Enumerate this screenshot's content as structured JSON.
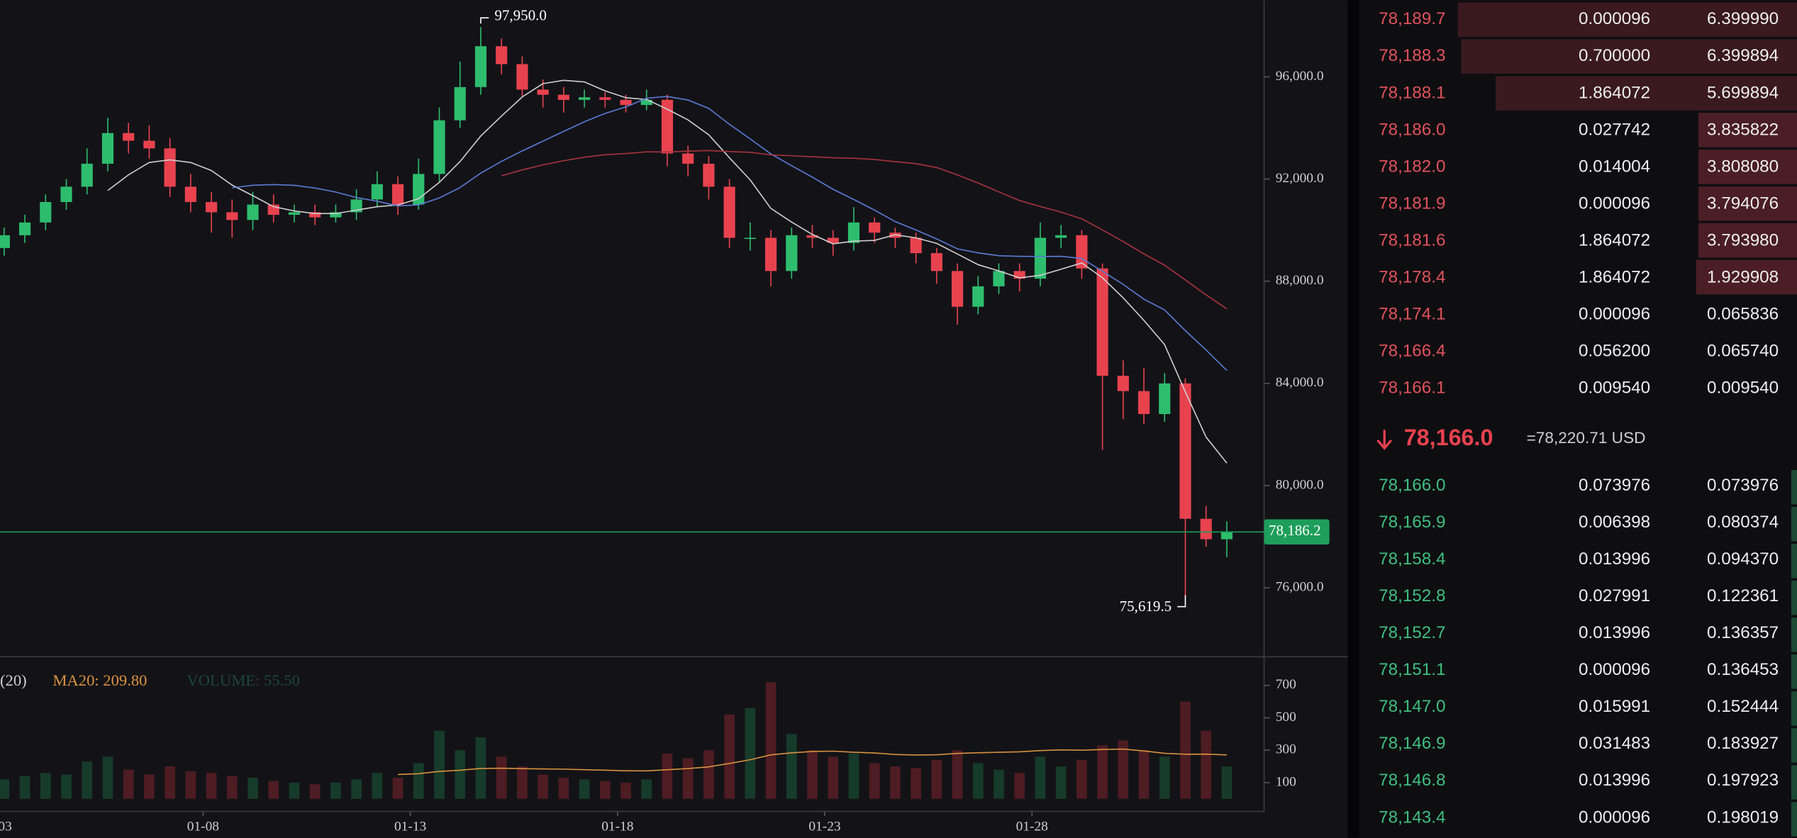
{
  "chart_data": {
    "type": "candlestick",
    "x": [
      3.2,
      3.7,
      4.2,
      4.7,
      5.2,
      5.7,
      6.2,
      6.7,
      7.2,
      7.7,
      8.2,
      8.7,
      9.2,
      9.7,
      10.2,
      10.7,
      11.2,
      11.7,
      12.2,
      12.7,
      13.2,
      13.7,
      14.2,
      14.7,
      15.2,
      15.7,
      16.2,
      16.7,
      17.2,
      17.7,
      18.2,
      18.7,
      19.2,
      19.7,
      20.2,
      20.7,
      21.2,
      21.7,
      22.2,
      22.7,
      23.2,
      23.7,
      24.2,
      24.7,
      25.2,
      25.7,
      26.2,
      26.7,
      27.2,
      27.7,
      28.2,
      28.7,
      29.2,
      29.7,
      30.2,
      30.7,
      31.2,
      31.7,
      32.2,
      32.7
    ],
    "open": [
      89300,
      89800,
      90300,
      91100,
      91700,
      92600,
      93800,
      93500,
      93200,
      91700,
      91100,
      90700,
      90400,
      91000,
      90600,
      90700,
      90500,
      90700,
      91200,
      91800,
      91000,
      92200,
      94300,
      95600,
      97200,
      96500,
      95500,
      95300,
      95100,
      95200,
      95100,
      94900,
      95100,
      93000,
      92600,
      91700,
      89700,
      89700,
      88400,
      89800,
      89700,
      89500,
      90300,
      89900,
      89700,
      89100,
      88400,
      87000,
      87800,
      88400,
      88100,
      89700,
      89800,
      88500,
      84300,
      83700,
      82800,
      84000,
      78700,
      77900
    ],
    "high": [
      90100,
      90600,
      91400,
      92000,
      93200,
      94400,
      94200,
      94100,
      93600,
      92200,
      91500,
      91200,
      91500,
      91400,
      91000,
      91000,
      91000,
      91600,
      92300,
      92100,
      92800,
      94800,
      96600,
      97950,
      97500,
      96800,
      95900,
      95600,
      95500,
      95400,
      95300,
      95500,
      95300,
      93300,
      92900,
      92000,
      90300,
      90000,
      90100,
      90200,
      90000,
      90900,
      90500,
      90100,
      89900,
      89300,
      88700,
      88200,
      88700,
      88700,
      90300,
      90200,
      90000,
      88700,
      84900,
      84600,
      84400,
      84200,
      79200,
      78600
    ],
    "low": [
      89000,
      89500,
      90000,
      90800,
      91400,
      92300,
      93000,
      92800,
      91300,
      90700,
      89900,
      89700,
      90000,
      90300,
      90300,
      90200,
      90300,
      90400,
      90900,
      90600,
      90800,
      91900,
      94000,
      95300,
      96100,
      95200,
      94800,
      94600,
      94800,
      94800,
      94600,
      94700,
      92500,
      92100,
      91200,
      89300,
      89200,
      87800,
      88100,
      89300,
      89000,
      89200,
      89500,
      89300,
      88700,
      87900,
      86300,
      86700,
      87500,
      87600,
      87800,
      89300,
      88100,
      81400,
      82600,
      82400,
      82500,
      75619.5,
      77600,
      77200
    ],
    "close": [
      89800,
      90300,
      91100,
      91700,
      92600,
      93800,
      93500,
      93200,
      91700,
      91100,
      90700,
      90400,
      91000,
      90600,
      90700,
      90500,
      90700,
      91200,
      91800,
      91000,
      92200,
      94300,
      95600,
      97200,
      96500,
      95500,
      95300,
      95100,
      95200,
      95100,
      94900,
      95100,
      93000,
      92600,
      91700,
      89700,
      89700,
      88400,
      89800,
      89700,
      89500,
      90300,
      89900,
      89700,
      89100,
      88400,
      87000,
      87800,
      88400,
      88100,
      89700,
      89800,
      88500,
      84300,
      83700,
      82800,
      84000,
      78700,
      77900,
      78186.2
    ],
    "up_color": "#2ebd6e",
    "down_color": "#e8424f",
    "ma_lines": [
      {
        "period": 6,
        "color": "#cfcfcf"
      },
      {
        "period": 12,
        "color": "#5b7bd5"
      },
      {
        "period": 25,
        "color": "#a8343f"
      }
    ],
    "xlim": [
      3.1,
      33.6
    ],
    "xticks": [
      {
        "value": 3,
        "label": "01-03"
      },
      {
        "value": 8,
        "label": "01-08"
      },
      {
        "value": 13,
        "label": "01-13"
      },
      {
        "value": 18,
        "label": "01-18"
      },
      {
        "value": 23,
        "label": "01-23"
      },
      {
        "value": 28,
        "label": "01-28"
      }
    ],
    "ylim": [
      73300,
      99000
    ],
    "yticks": [
      {
        "value": 76000,
        "label": "76,000.0"
      },
      {
        "value": 80000,
        "label": "80,000.0"
      },
      {
        "value": 84000,
        "label": "84,000.0"
      },
      {
        "value": 88000,
        "label": "88,000.0"
      },
      {
        "value": 92000,
        "label": "92,000.0"
      },
      {
        "value": 96000,
        "label": "96,000.0"
      }
    ],
    "annotations": [
      {
        "value": 97950,
        "label": "97,950.0"
      },
      {
        "value": 75619.5,
        "label": "75,619.5"
      }
    ],
    "last_price": {
      "value": 78186.2,
      "label": "78,186.2",
      "color": "#1e9e5a"
    },
    "volume": {
      "values": [
        120,
        140,
        160,
        150,
        230,
        260,
        180,
        150,
        200,
        170,
        160,
        140,
        130,
        110,
        100,
        90,
        100,
        120,
        160,
        130,
        220,
        420,
        300,
        380,
        260,
        200,
        150,
        130,
        120,
        110,
        100,
        120,
        280,
        250,
        300,
        520,
        560,
        720,
        400,
        300,
        260,
        280,
        220,
        200,
        190,
        240,
        300,
        220,
        180,
        160,
        260,
        200,
        240,
        330,
        360,
        300,
        260,
        600,
        420,
        200
      ],
      "ylim": [
        0,
        870
      ],
      "yticks": [
        100,
        300,
        500,
        700
      ],
      "ma_period": 20,
      "ma_color": "#d9923f",
      "legend": {
        "prefix": "(20)",
        "ma": "MA20: 209.80",
        "volume": "VOLUME: 55.50"
      }
    }
  },
  "order_book": {
    "asks": [
      [
        "78,189.7",
        "0.000096",
        "6.399990"
      ],
      [
        "78,188.3",
        "0.700000",
        "6.399894"
      ],
      [
        "78,188.1",
        "1.864072",
        "5.699894"
      ],
      [
        "78,186.0",
        "0.027742",
        "3.835822"
      ],
      [
        "78,182.0",
        "0.014004",
        "3.808080"
      ],
      [
        "78,181.9",
        "0.000096",
        "3.794076"
      ],
      [
        "78,181.6",
        "1.864072",
        "3.793980"
      ],
      [
        "78,178.4",
        "1.864072",
        "1.929908"
      ],
      [
        "78,174.1",
        "0.000096",
        "0.065836"
      ],
      [
        "78,166.4",
        "0.056200",
        "0.065740"
      ],
      [
        "78,166.1",
        "0.009540",
        "0.009540"
      ]
    ],
    "mid": {
      "price": "78,166.0",
      "converted": "=78,220.71 USD"
    },
    "bids": [
      [
        "78,166.0",
        "0.073976",
        "0.073976"
      ],
      [
        "78,165.9",
        "0.006398",
        "0.080374"
      ],
      [
        "78,158.4",
        "0.013996",
        "0.094370"
      ],
      [
        "78,152.8",
        "0.027991",
        "0.122361"
      ],
      [
        "78,152.7",
        "0.013996",
        "0.136357"
      ],
      [
        "78,151.1",
        "0.000096",
        "0.136453"
      ],
      [
        "78,147.0",
        "0.015991",
        "0.152444"
      ],
      [
        "78,146.9",
        "0.031483",
        "0.183927"
      ],
      [
        "78,146.8",
        "0.013996",
        "0.197923"
      ],
      [
        "78,143.4",
        "0.000096",
        "0.198019"
      ]
    ]
  }
}
